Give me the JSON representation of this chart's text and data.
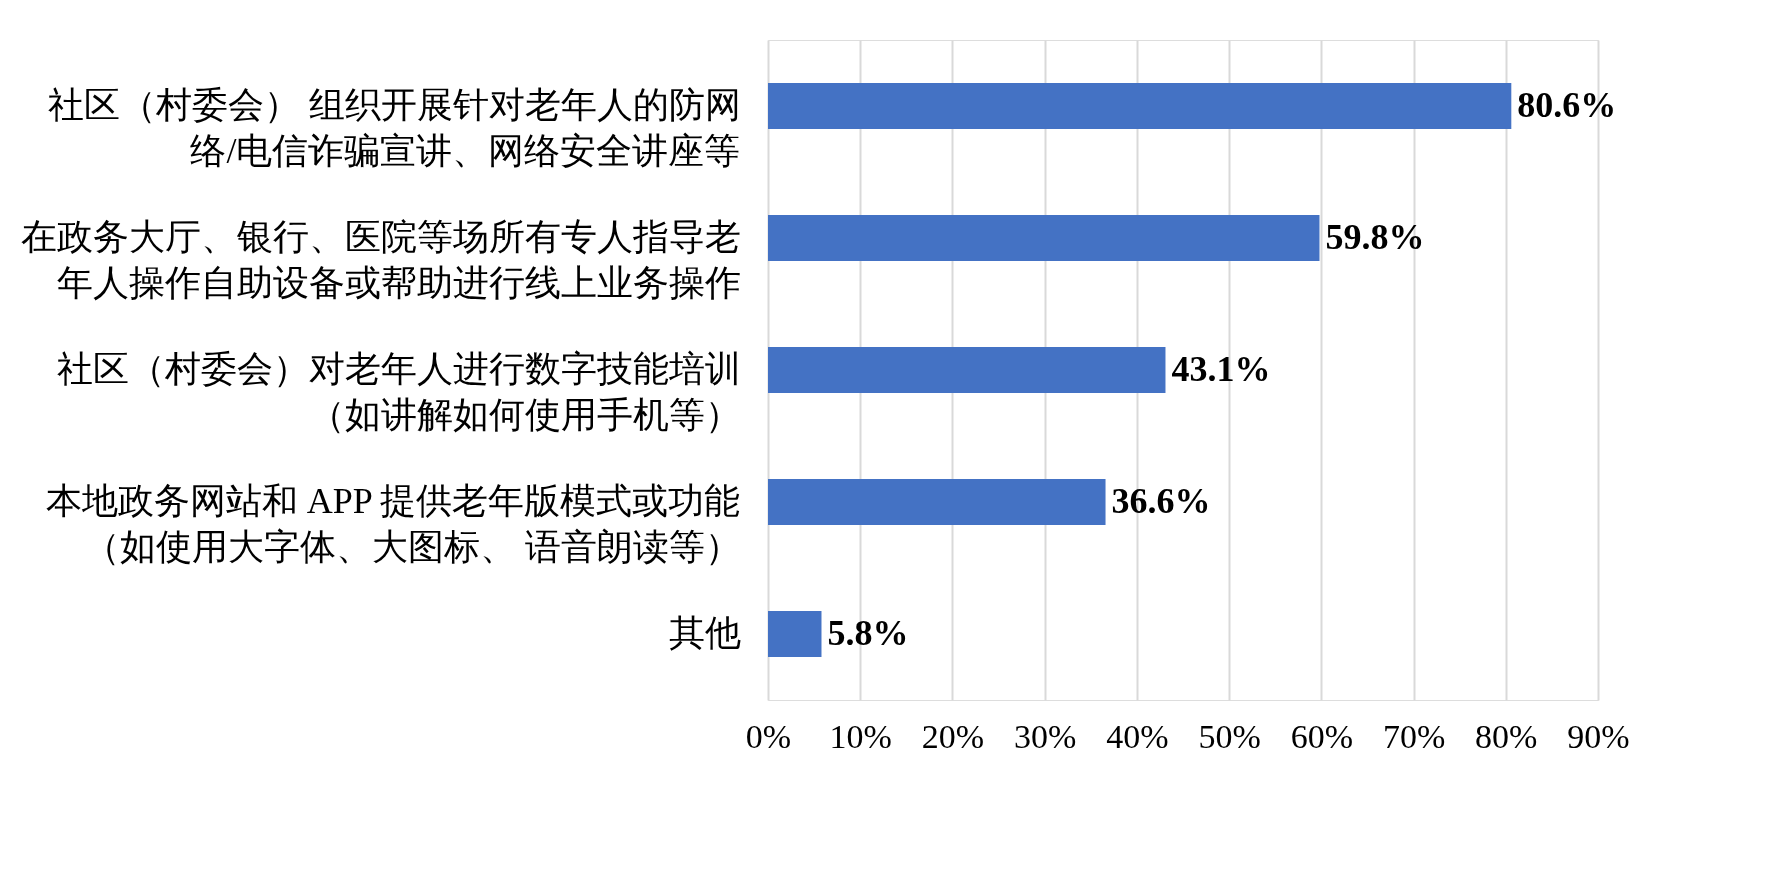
{
  "chart_data": {
    "type": "bar",
    "orientation": "horizontal",
    "categories": [
      "社区（村委会） 组织开展针对老年人的防网络/电信诈骗宣讲、网络安全讲座等",
      "在政务大厅、银行、医院等场所有专人指导老年人操作自助设备或帮助进行线上业务操作",
      "社区（村委会）对老年人进行数字技能培训（如讲解如何使用手机等）",
      "本地政务网站和 APP 提供老年版模式或功能（如使用大字体、大图标、 语音朗读等）",
      "其他"
    ],
    "values": [
      80.6,
      59.8,
      43.1,
      36.6,
      5.8
    ],
    "value_labels": [
      "80.6%",
      "59.8%",
      "43.1%",
      "36.6%",
      "5.8%"
    ],
    "color": "#4472c4",
    "xlim": [
      0,
      90
    ],
    "xticks": [
      {
        "value": 0,
        "label": "0%"
      },
      {
        "value": 10,
        "label": "10%"
      },
      {
        "value": 20,
        "label": "20%"
      },
      {
        "value": 30,
        "label": "30%"
      },
      {
        "value": 40,
        "label": "40%"
      },
      {
        "value": 50,
        "label": "50%"
      },
      {
        "value": 60,
        "label": "60%"
      },
      {
        "value": 70,
        "label": "70%"
      },
      {
        "value": 80,
        "label": "80%"
      },
      {
        "value": 90,
        "label": "90%"
      }
    ],
    "grid": "x"
  }
}
